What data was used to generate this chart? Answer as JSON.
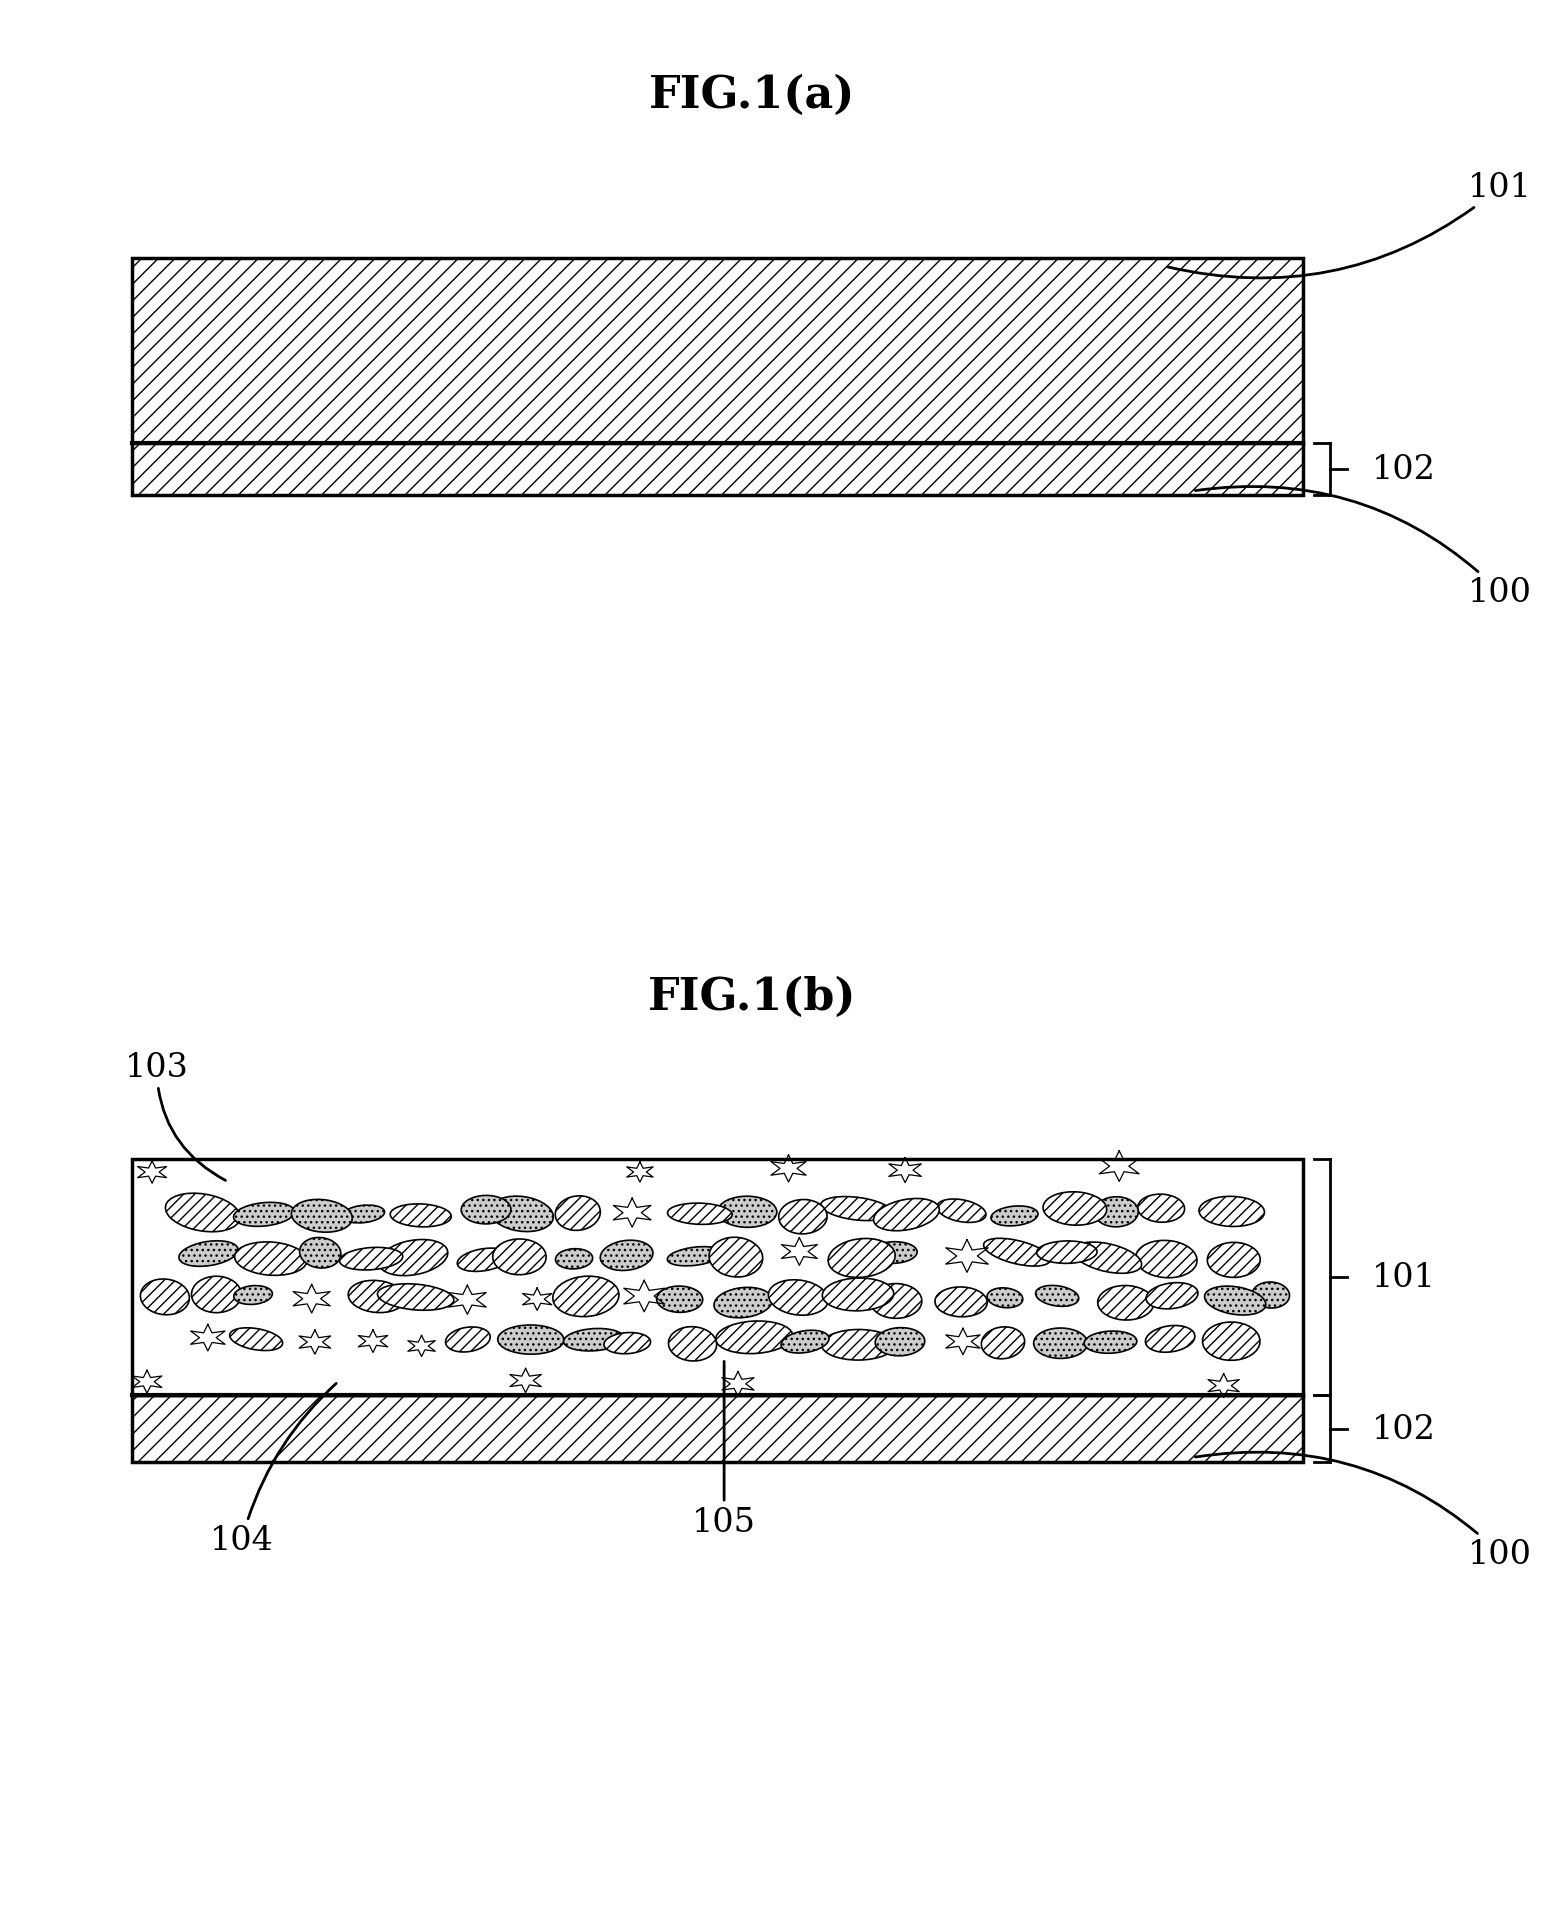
{
  "fig_title_a": "FIG.1(a)",
  "fig_title_b": "FIG.1(b)",
  "bg_color": "#ffffff",
  "line_color": "#000000",
  "label_101_a": "101",
  "label_102_a": "102",
  "label_100_a": "100",
  "label_101_b": "101",
  "label_102_b": "102",
  "label_100_b": "100",
  "label_103": "103",
  "label_104": "104",
  "label_105": "105",
  "title_fontsize": 32,
  "label_fontsize": 24
}
